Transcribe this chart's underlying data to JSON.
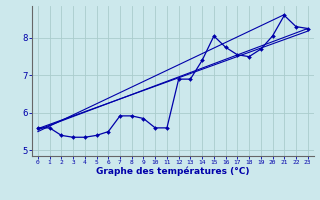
{
  "xlabel": "Graphe des températures (°C)",
  "background_color": "#cce8ec",
  "grid_color": "#aacccc",
  "line_color": "#0000aa",
  "xlim": [
    -0.5,
    23.5
  ],
  "ylim": [
    4.85,
    8.85
  ],
  "xticks": [
    0,
    1,
    2,
    3,
    4,
    5,
    6,
    7,
    8,
    9,
    10,
    11,
    12,
    13,
    14,
    15,
    16,
    17,
    18,
    19,
    20,
    21,
    22,
    23
  ],
  "yticks": [
    5,
    6,
    7,
    8
  ],
  "data_x": [
    0,
    1,
    2,
    3,
    4,
    5,
    6,
    7,
    8,
    9,
    10,
    11,
    12,
    13,
    14,
    15,
    16,
    17,
    18,
    19,
    20,
    21,
    22,
    23
  ],
  "data_y": [
    5.6,
    5.6,
    5.4,
    5.35,
    5.35,
    5.4,
    5.5,
    5.92,
    5.92,
    5.85,
    5.6,
    5.6,
    6.9,
    6.9,
    7.4,
    8.05,
    7.75,
    7.55,
    7.5,
    7.7,
    8.05,
    8.6,
    8.3,
    8.25
  ],
  "trend1_x": [
    0,
    23
  ],
  "trend1_y": [
    5.55,
    8.25
  ],
  "trend2_x": [
    0,
    21
  ],
  "trend2_y": [
    5.5,
    8.62
  ],
  "trend3_x": [
    0,
    23
  ],
  "trend3_y": [
    5.58,
    8.18
  ]
}
